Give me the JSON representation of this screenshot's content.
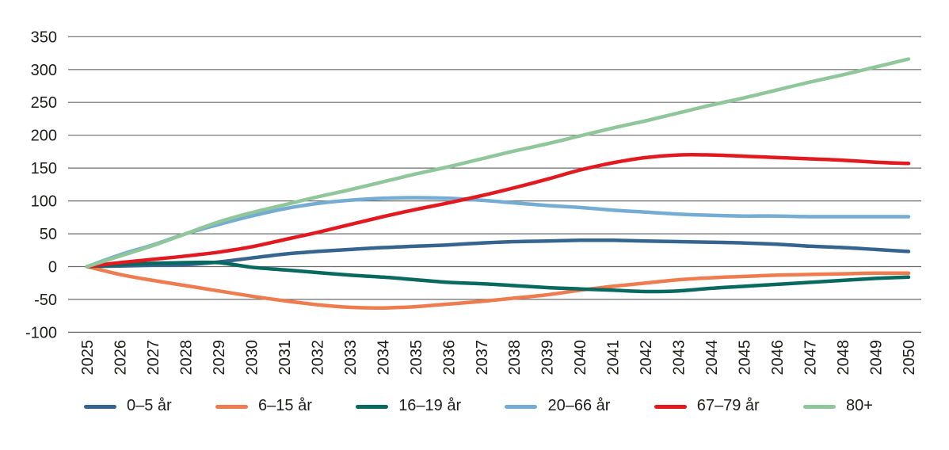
{
  "chart_data": {
    "type": "line",
    "title": "",
    "xlabel": "",
    "ylabel": "",
    "grid": true,
    "legend_position": "bottom",
    "ylim": [
      -100,
      350
    ],
    "yticks": [
      350,
      300,
      250,
      200,
      150,
      100,
      50,
      0,
      -50,
      -100
    ],
    "x": [
      2025,
      2026,
      2027,
      2028,
      2029,
      2030,
      2031,
      2032,
      2033,
      2034,
      2035,
      2036,
      2037,
      2038,
      2039,
      2040,
      2041,
      2042,
      2043,
      2044,
      2045,
      2046,
      2047,
      2048,
      2049,
      2050
    ],
    "series": [
      {
        "name": "0–5 år",
        "color": "#35648F",
        "values": [
          0,
          1,
          2,
          3,
          7,
          13,
          19,
          23,
          26,
          29,
          31,
          33,
          36,
          38,
          39,
          40,
          40,
          39,
          38,
          37,
          36,
          34,
          31,
          29,
          26,
          23
        ]
      },
      {
        "name": "6–15 år",
        "color": "#EE7C4F",
        "values": [
          0,
          -12,
          -21,
          -29,
          -37,
          -45,
          -52,
          -58,
          -62,
          -63,
          -61,
          -57,
          -53,
          -48,
          -43,
          -36,
          -30,
          -25,
          -20,
          -17,
          -15,
          -13,
          -12,
          -11,
          -10,
          -10
        ]
      },
      {
        "name": "16–19 år",
        "color": "#07695F",
        "values": [
          0,
          3,
          5,
          6,
          6,
          -1,
          -5,
          -9,
          -13,
          -16,
          -20,
          -24,
          -26,
          -29,
          -32,
          -34,
          -36,
          -38,
          -37,
          -33,
          -30,
          -27,
          -24,
          -21,
          -18,
          -16
        ]
      },
      {
        "name": "20–66 år",
        "color": "#75ACD4",
        "values": [
          0,
          18,
          33,
          50,
          64,
          77,
          88,
          96,
          101,
          104,
          105,
          104,
          101,
          97,
          93,
          90,
          86,
          83,
          80,
          78,
          77,
          77,
          76,
          76,
          76,
          76
        ]
      },
      {
        "name": "67–79 år",
        "color": "#E2191F",
        "values": [
          0,
          6,
          11,
          16,
          22,
          30,
          41,
          52,
          64,
          76,
          87,
          97,
          108,
          120,
          133,
          147,
          158,
          166,
          170,
          170,
          168,
          166,
          164,
          162,
          159,
          157
        ]
      },
      {
        "name": "80+",
        "color": "#8FC79B",
        "values": [
          0,
          16,
          32,
          50,
          68,
          82,
          94,
          106,
          117,
          129,
          141,
          152,
          164,
          176,
          187,
          199,
          211,
          222,
          234,
          246,
          257,
          269,
          281,
          292,
          304,
          316
        ]
      }
    ]
  },
  "styles": {
    "grid_color": "#6b6b6b",
    "axis_text_color": "#1d1d1b",
    "background": "#ffffff"
  }
}
